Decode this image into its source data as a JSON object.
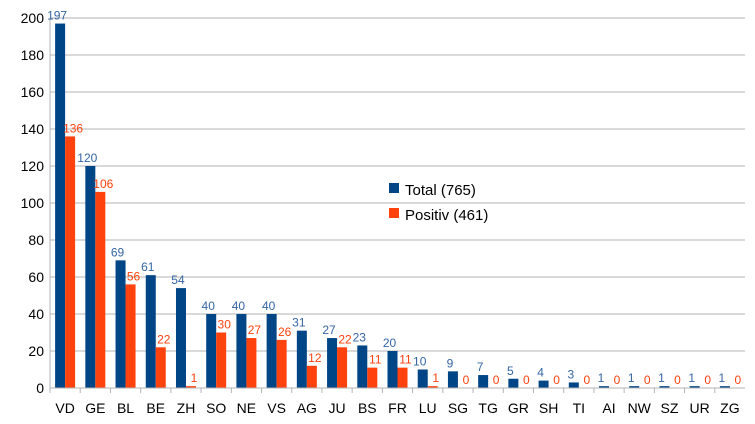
{
  "chart_data": {
    "type": "bar",
    "categories": [
      "VD",
      "GE",
      "BL",
      "BE",
      "ZH",
      "SO",
      "NE",
      "VS",
      "AG",
      "JU",
      "BS",
      "FR",
      "LU",
      "SG",
      "TG",
      "GR",
      "SH",
      "TI",
      "AI",
      "NW",
      "SZ",
      "UR",
      "ZG"
    ],
    "series": [
      {
        "name": "Total (765)",
        "color": "#004586",
        "values": [
          197,
          120,
          69,
          61,
          54,
          40,
          40,
          40,
          31,
          27,
          23,
          20,
          10,
          9,
          7,
          5,
          4,
          3,
          1,
          1,
          1,
          1,
          1
        ]
      },
      {
        "name": "Positiv (461)",
        "color": "#ff420e",
        "values": [
          136,
          106,
          56,
          22,
          1,
          30,
          27,
          26,
          12,
          22,
          11,
          11,
          1,
          0,
          0,
          0,
          0,
          0,
          0,
          0,
          0,
          0,
          0
        ]
      }
    ],
    "ylim": [
      0,
      200
    ],
    "yticks": [
      0,
      20,
      40,
      60,
      80,
      100,
      120,
      140,
      160,
      180,
      200
    ],
    "grid": true,
    "legend_position": "right-center",
    "data_labels": true
  }
}
